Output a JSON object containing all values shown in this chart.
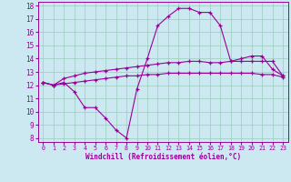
{
  "xlabel": "Windchill (Refroidissement éolien,°C)",
  "bg_color": "#cce8f0",
  "grid_color": "#99ccbb",
  "line_color": "#990099",
  "xlim": [
    -0.5,
    23.5
  ],
  "ylim": [
    7.7,
    18.3
  ],
  "xticks": [
    0,
    1,
    2,
    3,
    4,
    5,
    6,
    7,
    8,
    9,
    10,
    11,
    12,
    13,
    14,
    15,
    16,
    17,
    18,
    19,
    20,
    21,
    22,
    23
  ],
  "yticks": [
    8,
    9,
    10,
    11,
    12,
    13,
    14,
    15,
    16,
    17,
    18
  ],
  "series1": [
    12.2,
    12.0,
    12.2,
    11.5,
    10.3,
    10.3,
    9.5,
    8.6,
    8.0,
    11.7,
    14.0,
    16.5,
    17.2,
    17.8,
    17.8,
    17.5,
    17.5,
    16.5,
    13.8,
    14.0,
    14.2,
    14.2,
    13.2,
    12.7
  ],
  "series2": [
    12.2,
    12.0,
    12.5,
    12.7,
    12.9,
    13.0,
    13.1,
    13.2,
    13.3,
    13.4,
    13.5,
    13.6,
    13.7,
    13.7,
    13.8,
    13.8,
    13.7,
    13.7,
    13.8,
    13.8,
    13.8,
    13.8,
    13.8,
    12.7
  ],
  "series3": [
    12.2,
    12.0,
    12.1,
    12.2,
    12.3,
    12.4,
    12.5,
    12.6,
    12.7,
    12.7,
    12.8,
    12.8,
    12.9,
    12.9,
    12.9,
    12.9,
    12.9,
    12.9,
    12.9,
    12.9,
    12.9,
    12.8,
    12.8,
    12.6
  ]
}
